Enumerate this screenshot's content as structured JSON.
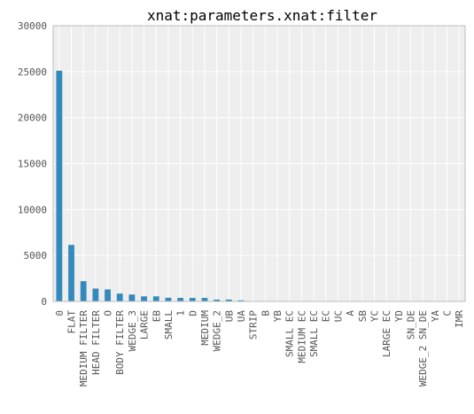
{
  "chart_data": {
    "type": "bar",
    "title": "xnat:parameters.xnat:filter",
    "xlabel": "",
    "ylabel": "",
    "ylim": [
      0,
      30000
    ],
    "yticks": [
      0,
      5000,
      10000,
      15000,
      20000,
      25000,
      30000
    ],
    "grid": true,
    "legend": "none",
    "colors": {
      "bar": "#348ABD",
      "plot_bg": "#EEEEEE",
      "grid": "#FFFFFF",
      "frame": "#BCBCBC"
    },
    "categories": [
      "0",
      "FLAT",
      "MEDIUM FILTER",
      "HEAD FILTER",
      "O",
      "BODY FILTER",
      "WEDGE_3",
      "LARGE",
      "EB",
      "SMALL",
      "1",
      "D",
      "MEDIUM",
      "WEDGE_2",
      "UB",
      "UA",
      "STRIP",
      "B",
      "YB",
      "SMALL EC",
      "MEDIUM EC",
      "SMALL EC",
      "EC",
      "UC",
      "A",
      "SB",
      "YC",
      "LARGE EC",
      "YD",
      "SN_DE",
      "WEDGE_2 SN_DE",
      "YA",
      "C",
      "IMR"
    ],
    "values": [
      25100,
      6150,
      2200,
      1400,
      1300,
      850,
      750,
      550,
      550,
      400,
      380,
      380,
      380,
      200,
      200,
      120,
      40,
      30,
      25,
      20,
      15,
      15,
      12,
      10,
      10,
      8,
      8,
      6,
      5,
      5,
      4,
      3,
      3,
      2
    ]
  }
}
